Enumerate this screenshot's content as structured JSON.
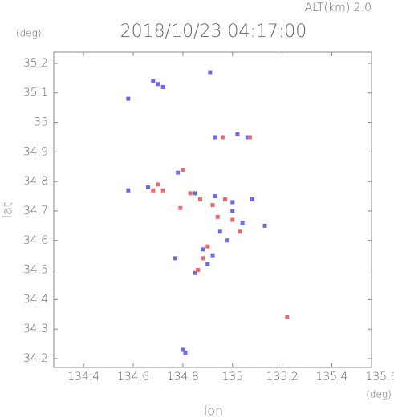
{
  "chart_data": {
    "type": "scatter",
    "title": "2018/10/23 04:17:00",
    "subtitle": "ALT(km) 2.0",
    "x_label": "lon",
    "x_unit": "(deg)",
    "y_label": "lat",
    "y_unit": "(deg)",
    "xlim": [
      134.28,
      135.56
    ],
    "ylim": [
      34.17,
      35.238
    ],
    "xticks": [
      134.4,
      134.6,
      134.8,
      135.0,
      135.2,
      135.4,
      135.6
    ],
    "yticks": [
      34.2,
      34.3,
      34.4,
      34.5,
      34.6,
      34.7,
      34.8,
      34.9,
      35.0,
      35.1,
      35.2
    ],
    "series": [
      {
        "color": "#6a6ae6",
        "x": [
          134.7,
          134.68,
          134.72,
          134.91,
          134.58,
          134.93,
          135.02,
          135.06,
          134.58,
          134.66,
          134.78,
          134.85,
          134.93,
          135.08,
          135.0,
          135.04,
          134.98,
          134.88,
          134.77,
          134.85,
          134.92,
          135.13,
          134.81,
          134.8,
          135.0,
          134.9,
          134.95
        ],
        "values": [
          35.13,
          35.14,
          35.12,
          35.17,
          35.08,
          34.95,
          34.96,
          34.95,
          34.77,
          34.78,
          34.83,
          34.76,
          34.75,
          34.74,
          34.7,
          34.66,
          34.6,
          34.57,
          34.54,
          34.49,
          34.55,
          34.65,
          34.22,
          34.23,
          34.73,
          34.52,
          34.63
        ]
      },
      {
        "color": "#e86a6a",
        "x": [
          134.7,
          134.72,
          134.8,
          134.83,
          134.87,
          134.92,
          134.97,
          135.07,
          134.96,
          135.22,
          134.9,
          134.88,
          134.86,
          135.0,
          134.94,
          134.79,
          135.03,
          134.68
        ],
        "values": [
          34.79,
          34.77,
          34.84,
          34.76,
          34.74,
          34.72,
          34.74,
          34.95,
          34.95,
          34.34,
          34.58,
          34.54,
          34.5,
          34.67,
          34.68,
          34.71,
          34.63,
          34.77
        ]
      }
    ]
  }
}
